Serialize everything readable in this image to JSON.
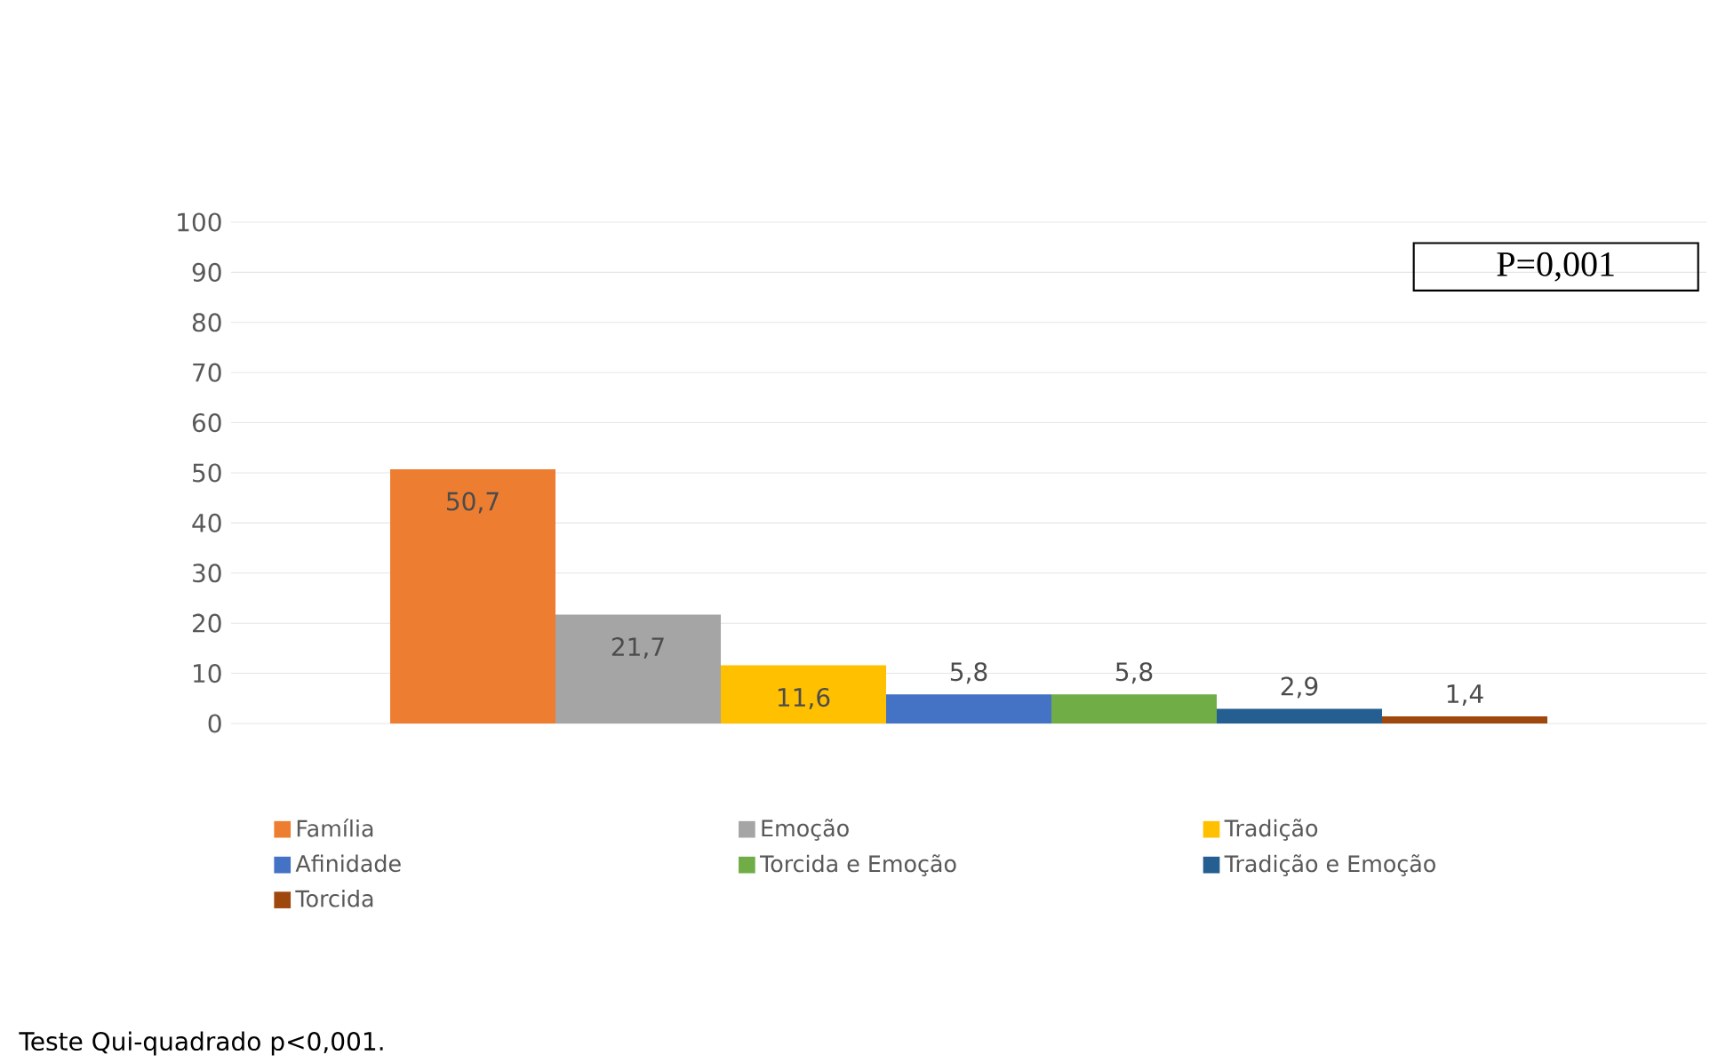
{
  "chart_data": {
    "type": "bar",
    "categories": [
      null
    ],
    "series": [
      {
        "name": "Família",
        "color": "#ed7d31",
        "values": [
          50.7
        ],
        "value_labels": [
          "50,7"
        ]
      },
      {
        "name": "Emoção",
        "color": "#a5a5a5",
        "values": [
          21.7
        ],
        "value_labels": [
          "21,7"
        ]
      },
      {
        "name": "Tradição",
        "color": "#ffc000",
        "values": [
          11.6
        ],
        "value_labels": [
          "11,6"
        ]
      },
      {
        "name": "Afinidade",
        "color": "#4472c4",
        "values": [
          5.8
        ],
        "value_labels": [
          "5,8"
        ]
      },
      {
        "name": "Torcida e Emoção",
        "color": "#70ad47",
        "values": [
          5.8
        ],
        "value_labels": [
          "5,8"
        ]
      },
      {
        "name": "Tradição e Emoção",
        "color": "#255e91",
        "values": [
          2.9
        ],
        "value_labels": [
          "2,9"
        ]
      },
      {
        "name": "Torcida",
        "color": "#9e480e",
        "values": [
          1.4
        ],
        "value_labels": [
          "1,4"
        ]
      }
    ],
    "ylim": [
      0,
      100
    ],
    "yticks": [
      0,
      10,
      20,
      30,
      40,
      50,
      60,
      70,
      80,
      90,
      100
    ],
    "grid": "y",
    "legend": "bottom",
    "annotations": [
      "P=0,001",
      "Teste Qui-quadrado p<0,001."
    ]
  }
}
